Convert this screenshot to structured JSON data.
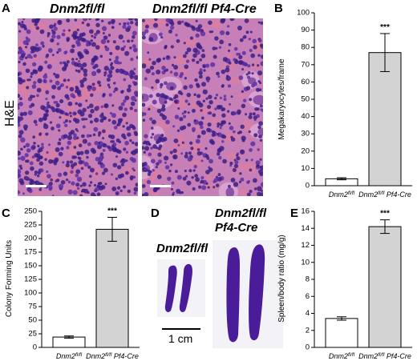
{
  "panel_a": {
    "label": "A",
    "title_left": "Dnm2fl/fl",
    "title_right": "Dnm2fl/fl Pf4-Cre",
    "stain_label": "H&E"
  },
  "panel_d": {
    "label": "D",
    "label_left": "Dnm2fl/fl",
    "label_right_line1": "Dnm2fl/fl",
    "label_right_line2": "Pf4-Cre",
    "scale_bar_text": "1 cm"
  },
  "chart_data": [
    {
      "panel": "B",
      "type": "bar",
      "categories": [
        "Dnm2fl/fl",
        "Dnm2fl/fl Pf4-Cre"
      ],
      "values": [
        4,
        77
      ],
      "errors": [
        0.6,
        11
      ],
      "bar_colors": [
        "#ffffff",
        "#d3d3d3"
      ],
      "significance": "***",
      "ylabel": "Megakaryocytes/frame",
      "ylim": [
        0,
        100
      ],
      "yticks": [
        0,
        10,
        20,
        30,
        40,
        50,
        60,
        70,
        80,
        90,
        100
      ]
    },
    {
      "panel": "C",
      "type": "bar",
      "categories": [
        "Dnm2fl/fl",
        "Dnm2fl/fl Pf4-Cre"
      ],
      "values": [
        19,
        217
      ],
      "errors": [
        2,
        22
      ],
      "bar_colors": [
        "#ffffff",
        "#d3d3d3"
      ],
      "significance": "***",
      "ylabel": "Colony Forming Units",
      "ylim": [
        0,
        250
      ],
      "yticks": [
        0,
        25,
        50,
        75,
        100,
        125,
        150,
        175,
        200,
        225,
        250
      ]
    },
    {
      "panel": "E",
      "type": "bar",
      "categories": [
        "Dnm2fl/fl",
        "Dnm2fl/fl Pf4-Cre"
      ],
      "values": [
        3.4,
        14.2
      ],
      "errors": [
        0.2,
        0.8
      ],
      "bar_colors": [
        "#ffffff",
        "#d3d3d3"
      ],
      "significance": "***",
      "ylabel": "Spleen/body ratio (mg/g)",
      "ylim": [
        0,
        16
      ],
      "yticks": [
        0,
        2,
        4,
        6,
        8,
        10,
        12,
        14,
        16
      ]
    }
  ]
}
